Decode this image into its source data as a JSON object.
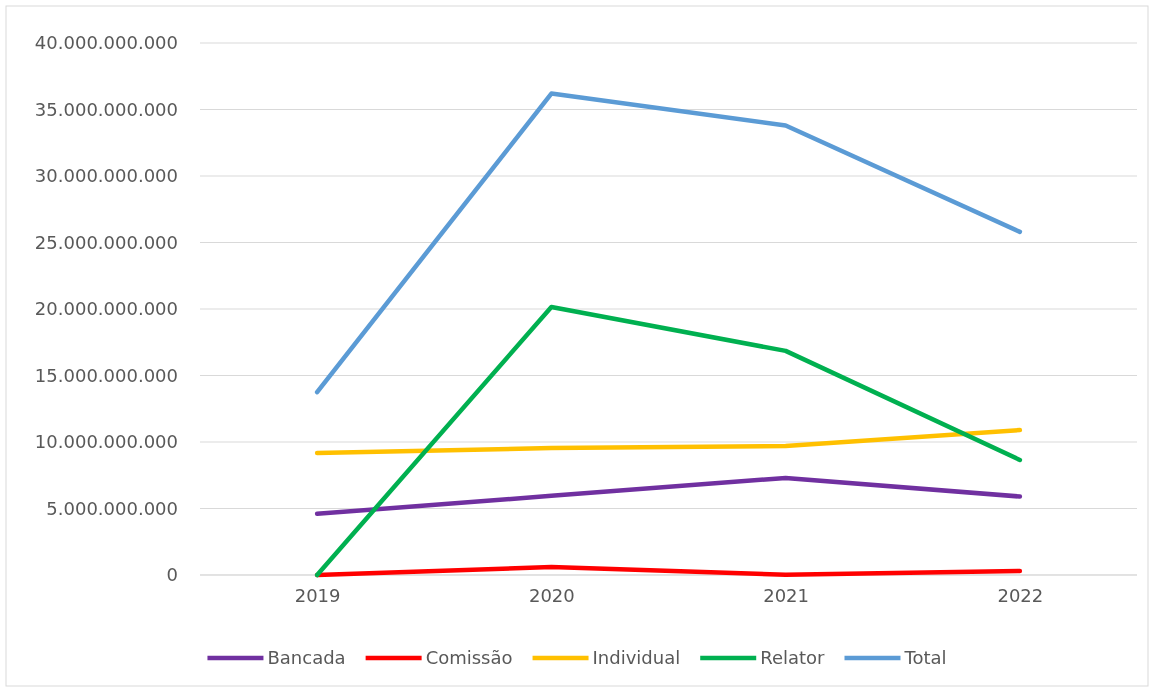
{
  "chart_data": {
    "type": "line",
    "categories": [
      "2019",
      "2020",
      "2021",
      "2022"
    ],
    "series": [
      {
        "name": "Bancada",
        "color": "#7030a0",
        "values": [
          4600000000,
          5950000000,
          7300000000,
          5900000000
        ]
      },
      {
        "name": "Comissão",
        "color": "#ff0000",
        "values": [
          0,
          600000000,
          20000000,
          300000000
        ]
      },
      {
        "name": "Individual",
        "color": "#ffc000",
        "values": [
          9170000000,
          9550000000,
          9700000000,
          10900000000
        ]
      },
      {
        "name": "Relator",
        "color": "#00b050",
        "values": [
          0,
          20150000000,
          16850000000,
          8650000000
        ]
      },
      {
        "name": "Total",
        "color": "#5b9bd5",
        "values": [
          13750000000,
          36200000000,
          33800000000,
          25800000000
        ]
      }
    ],
    "ylim": [
      0,
      40000000000
    ],
    "yticks": [
      {
        "value": 0,
        "label": "0"
      },
      {
        "value": 5000000000,
        "label": "5.000.000.000"
      },
      {
        "value": 10000000000,
        "label": "10.000.000.000"
      },
      {
        "value": 15000000000,
        "label": "15.000.000.000"
      },
      {
        "value": 20000000000,
        "label": "20.000.000.000"
      },
      {
        "value": 25000000000,
        "label": "25.000.000.000"
      },
      {
        "value": 30000000000,
        "label": "30.000.000.000"
      },
      {
        "value": 35000000000,
        "label": "35.000.000.000"
      },
      {
        "value": 40000000000,
        "label": "40.000.000.000"
      }
    ],
    "grid": "y",
    "legend": "bottom",
    "marker": "none",
    "line_style": "solid"
  }
}
